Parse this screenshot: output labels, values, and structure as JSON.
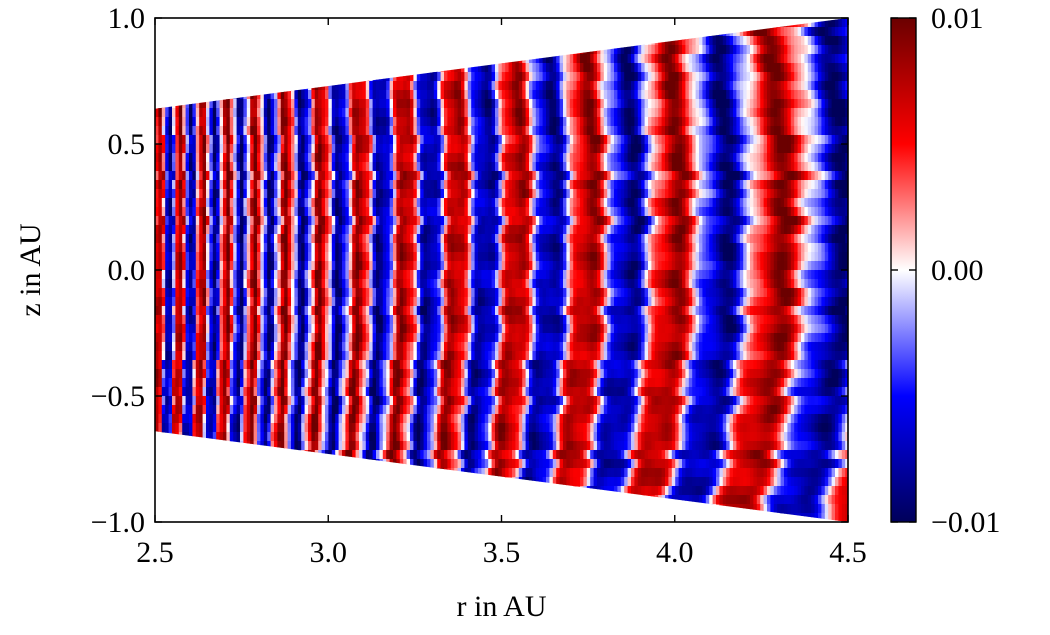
{
  "chart_data": {
    "type": "heatmap",
    "title": "",
    "xlabel": "r in AU",
    "ylabel": "z in AU",
    "xlim": [
      2.5,
      4.5
    ],
    "ylim": [
      -1.0,
      1.0
    ],
    "x_ticks": [
      "2.5",
      "3.0",
      "3.5",
      "4.0",
      "4.5"
    ],
    "x_tick_values": [
      2.5,
      3.0,
      3.5,
      4.0,
      4.5
    ],
    "y_ticks": [
      "−1.0",
      "−0.5",
      "0.0",
      "0.5",
      "1.0"
    ],
    "y_tick_values": [
      -1.0,
      -0.5,
      0.0,
      0.5,
      1.0
    ],
    "colorbar": {
      "min": -0.01,
      "max": 0.01,
      "tick_labels": [
        "−0.01",
        "0.00",
        "0.01"
      ],
      "tick_values": [
        -0.01,
        0.0,
        0.01
      ],
      "colormap": [
        "#00005a",
        "#0000ff",
        "#ffffff",
        "#ff0000",
        "#6b0000"
      ]
    },
    "domain_shape": "wedge",
    "domain_z_edges": [
      {
        "r": 2.5,
        "z_top": 0.64,
        "z_bottom": -0.64
      },
      {
        "r": 4.5,
        "z_top": 1.0,
        "z_bottom": -1.0
      }
    ],
    "grid": false,
    "legend": "none"
  }
}
